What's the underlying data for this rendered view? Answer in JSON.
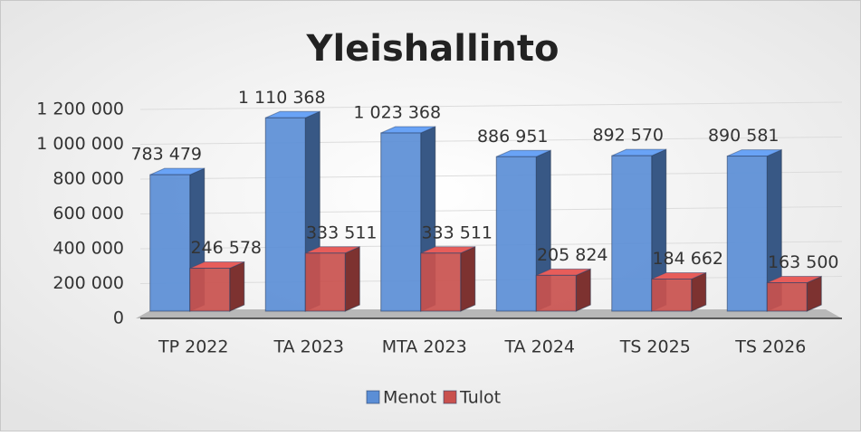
{
  "chart_data": {
    "type": "bar3d",
    "title": "Yleishallinto",
    "categories": [
      "TP 2022",
      "TA 2023",
      "MTA 2023",
      "TA 2024",
      "TS 2025",
      "TS 2026"
    ],
    "series": [
      {
        "name": "Menot",
        "color": "#5b8ed6",
        "values": [
          783479,
          1110368,
          1023368,
          886951,
          892570,
          890581
        ],
        "value_labels": [
          "783 479",
          "1 110 368",
          "1 023 368",
          "886 951",
          "892 570",
          "890 581"
        ]
      },
      {
        "name": "Tulot",
        "color": "#c9514e",
        "values": [
          246578,
          333511,
          333511,
          205824,
          184662,
          163500
        ],
        "value_labels": [
          "246 578",
          "333 511",
          "333 511",
          "205 824",
          "184 662",
          "163 500"
        ]
      }
    ],
    "ylim": [
      0,
      1200000
    ],
    "yticks": [
      0,
      {
        "value": 200000,
        "label": "200 000"
      },
      {
        "value": 400000,
        "label": "400 000"
      },
      {
        "value": 600000,
        "label": "600 000"
      },
      {
        "value": 800000,
        "label": "800 000"
      },
      {
        "value": 1000000,
        "label": "1 000 000"
      },
      {
        "value": 1200000,
        "label": "1 200 000"
      }
    ],
    "grid": true,
    "legend": "bottom"
  }
}
